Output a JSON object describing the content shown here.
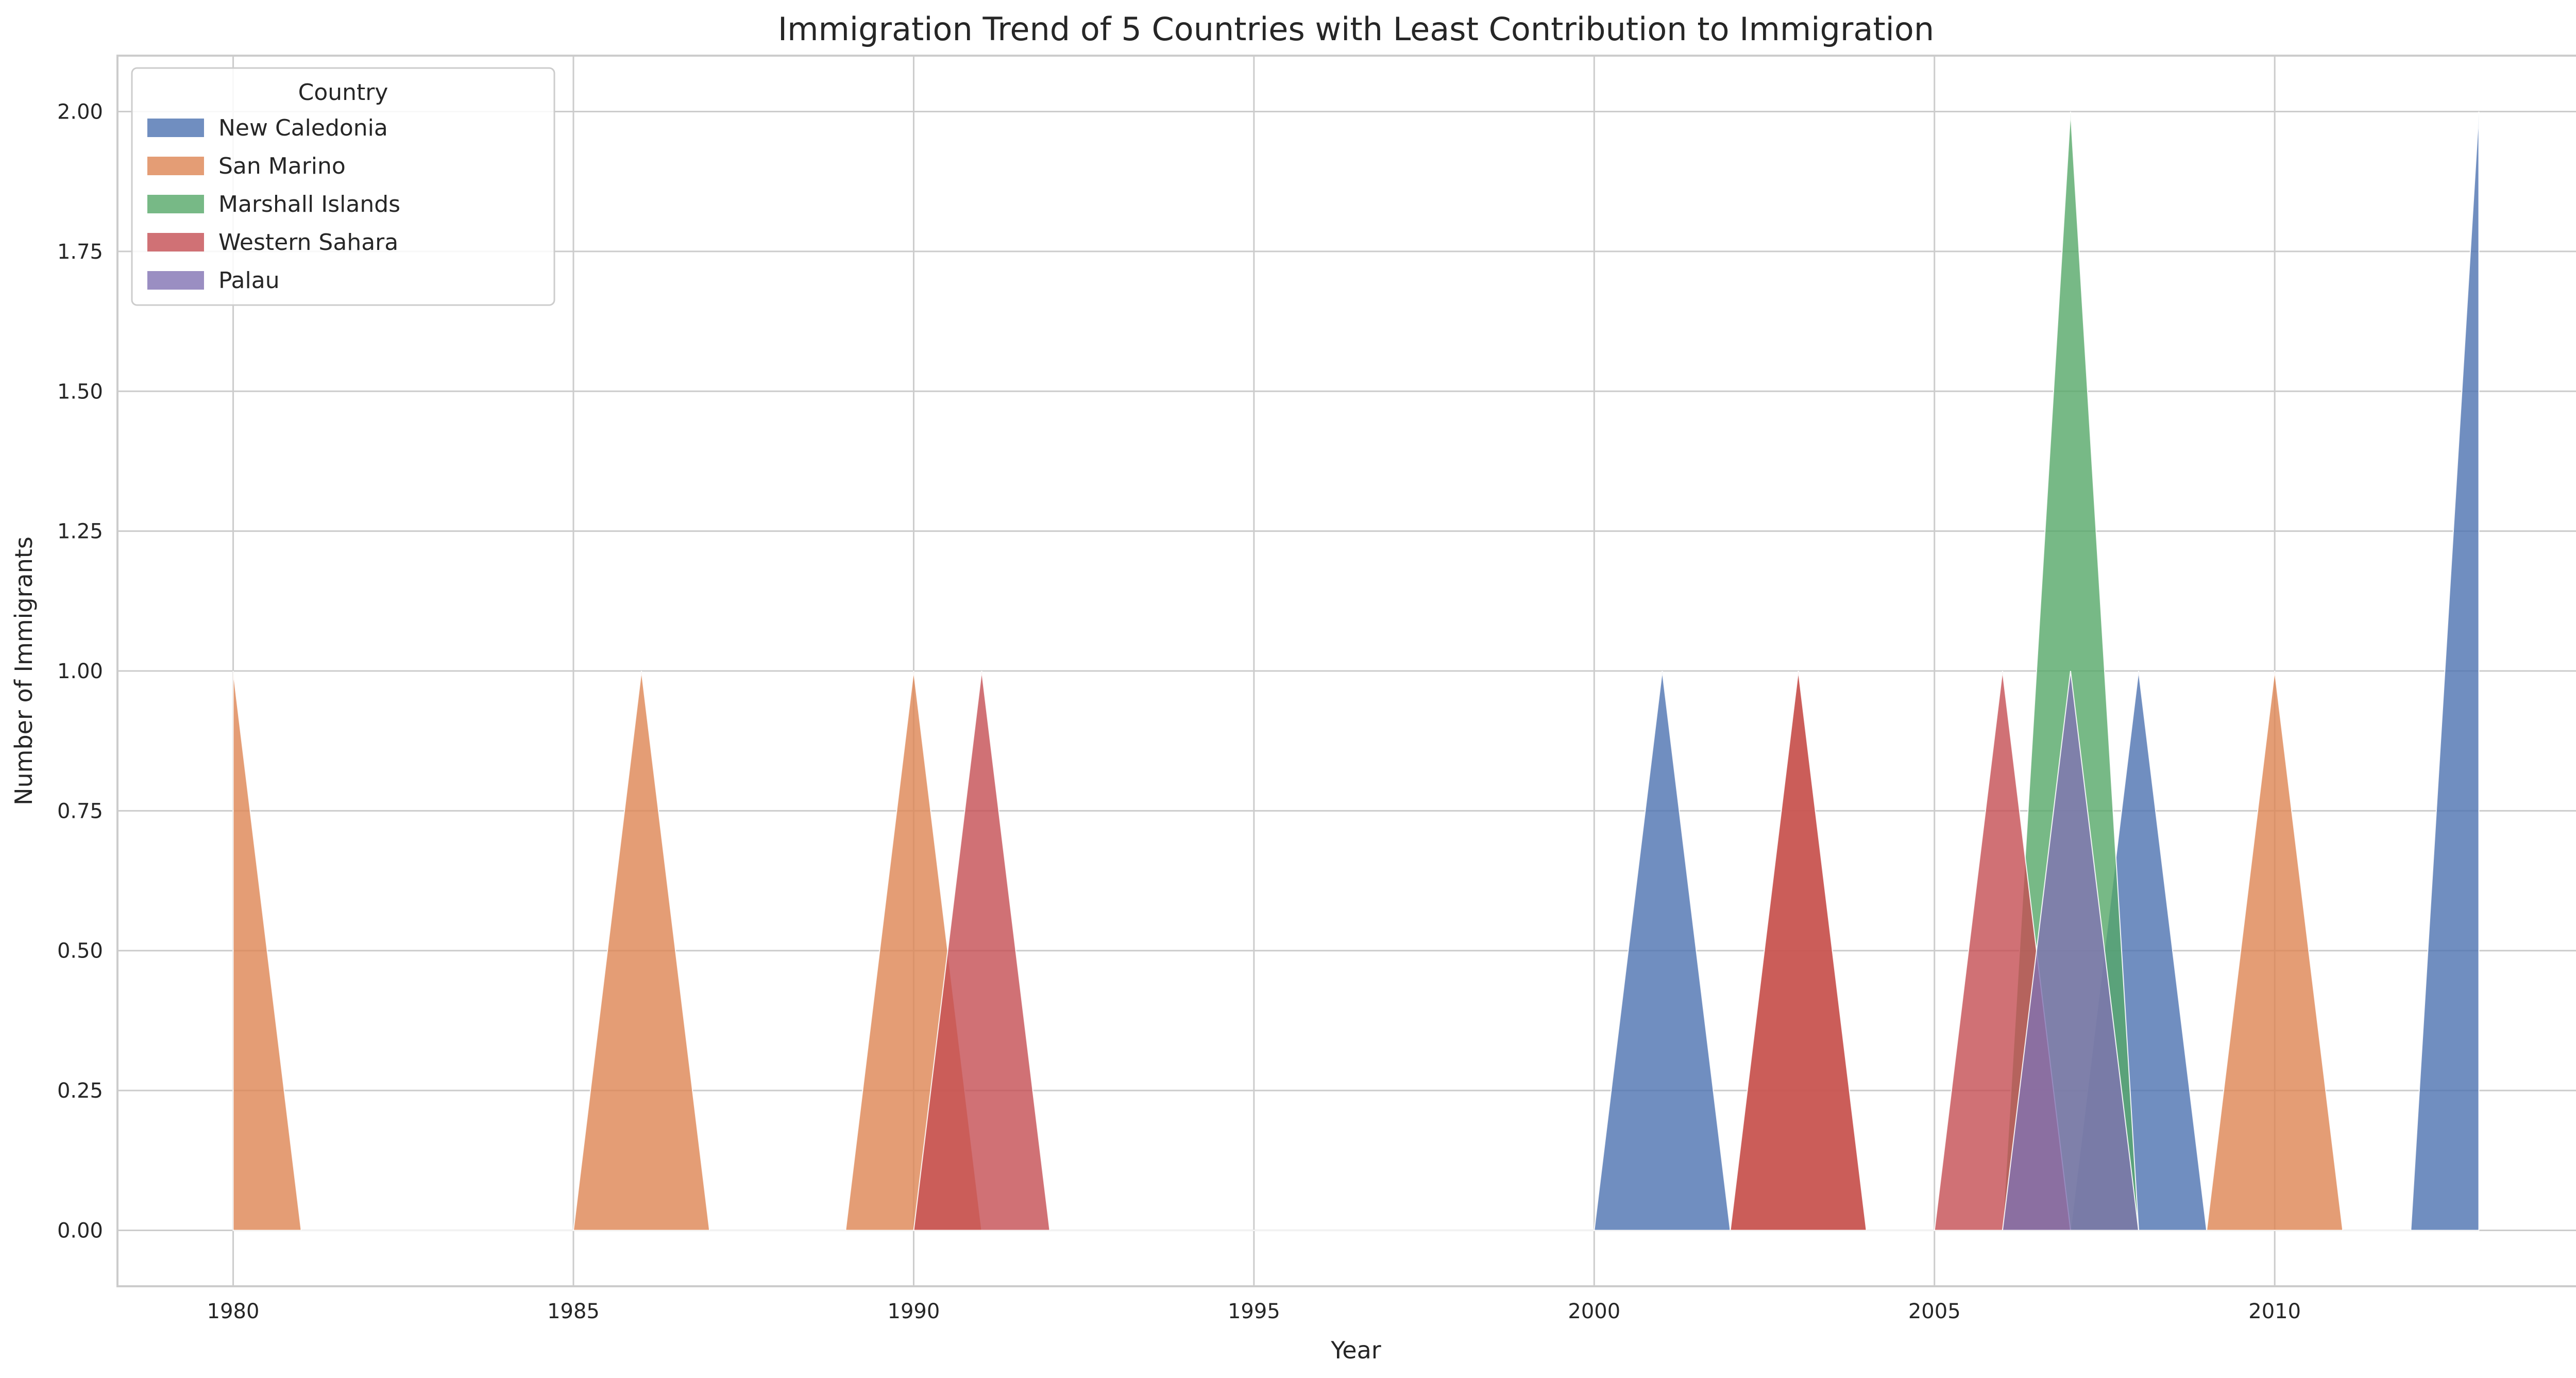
{
  "chart_data": {
    "type": "area",
    "title": "Immigration Trend of 5 Countries with Least Contribution to Immigration",
    "xlabel": "Year",
    "ylabel": "Number of Immigrants",
    "x": [
      1980,
      1981,
      1982,
      1983,
      1984,
      1985,
      1986,
      1987,
      1988,
      1989,
      1990,
      1991,
      1992,
      1993,
      1994,
      1995,
      1996,
      1997,
      1998,
      1999,
      2000,
      2001,
      2002,
      2003,
      2004,
      2005,
      2006,
      2007,
      2008,
      2009,
      2010,
      2011,
      2012,
      2013
    ],
    "xlim": [
      1978.3,
      2014.7
    ],
    "ylim": [
      -0.1,
      2.1
    ],
    "xticks": [
      1980,
      1985,
      1990,
      1995,
      2000,
      2005,
      2010
    ],
    "xtick_labels": [
      "1980",
      "1985",
      "1990",
      "1995",
      "2000",
      "2005",
      "2010"
    ],
    "yticks": [
      0,
      0.25,
      0.5,
      0.75,
      1.0,
      1.25,
      1.5,
      1.75,
      2.0
    ],
    "ytick_labels": [
      "0.00",
      "0.25",
      "0.50",
      "0.75",
      "1.00",
      "1.25",
      "1.50",
      "1.75",
      "2.00"
    ],
    "grid": true,
    "legend": {
      "title": "Country",
      "placement": "upper-left"
    },
    "series": [
      {
        "name": "New Caledonia",
        "color": "#4c72b0",
        "values": [
          0,
          0,
          0,
          0,
          0,
          0,
          0,
          0,
          0,
          0,
          0,
          0,
          0,
          0,
          0,
          0,
          0,
          0,
          0,
          0,
          0,
          1,
          0,
          0,
          0,
          0,
          0,
          0,
          1,
          0,
          0,
          0,
          0,
          2
        ]
      },
      {
        "name": "San Marino",
        "color": "#dd8452",
        "values": [
          1,
          0,
          0,
          0,
          0,
          0,
          1,
          0,
          0,
          0,
          1,
          0,
          0,
          0,
          0,
          0,
          0,
          0,
          0,
          0,
          0,
          0,
          0,
          1,
          0,
          0,
          0,
          0,
          0,
          0,
          1,
          0,
          0,
          0
        ]
      },
      {
        "name": "Marshall Islands",
        "color": "#55a868",
        "values": [
          0,
          0,
          0,
          0,
          0,
          0,
          0,
          0,
          0,
          0,
          0,
          0,
          0,
          0,
          0,
          0,
          0,
          0,
          0,
          0,
          0,
          0,
          0,
          0,
          0,
          0,
          0,
          2,
          0,
          0,
          0,
          0,
          0,
          0
        ]
      },
      {
        "name": "Western Sahara",
        "color": "#c44e52",
        "values": [
          0,
          0,
          0,
          0,
          0,
          0,
          0,
          0,
          0,
          0,
          0,
          1,
          0,
          0,
          0,
          0,
          0,
          0,
          0,
          0,
          0,
          0,
          0,
          1,
          0,
          0,
          1,
          0,
          0,
          0,
          0,
          0,
          0,
          0
        ]
      },
      {
        "name": "Palau",
        "color": "#8172b3",
        "values": [
          0,
          0,
          0,
          0,
          0,
          0,
          0,
          0,
          0,
          0,
          0,
          0,
          0,
          0,
          0,
          0,
          0,
          0,
          0,
          0,
          0,
          0,
          0,
          0,
          0,
          0,
          0,
          1,
          0,
          0,
          0,
          0,
          0,
          0
        ]
      }
    ]
  }
}
